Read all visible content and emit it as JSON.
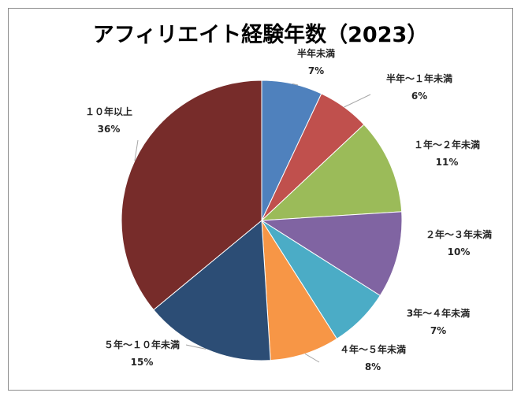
{
  "chart_data": {
    "type": "pie",
    "title": "アフィリエイト経験年数（2023）",
    "categories": [
      "半年未満",
      "半年～１年未満",
      "１年～２年未満",
      "２年～３年未満",
      "3年～４年未満",
      "４年～５年未満",
      "５年～１０年未満",
      "１０年以上"
    ],
    "values": [
      7,
      6,
      11,
      10,
      7,
      8,
      15,
      36
    ],
    "value_labels": [
      "7%",
      "6%",
      "11%",
      "10%",
      "7%",
      "8%",
      "15%",
      "36%"
    ],
    "colors": [
      "#4f81bd",
      "#c0504d",
      "#9bbb59",
      "#8064a2",
      "#4bacc6",
      "#f79646",
      "#2c4d75",
      "#772c2a"
    ],
    "legend": "none",
    "start_angle": 0,
    "direction": "clockwise"
  }
}
